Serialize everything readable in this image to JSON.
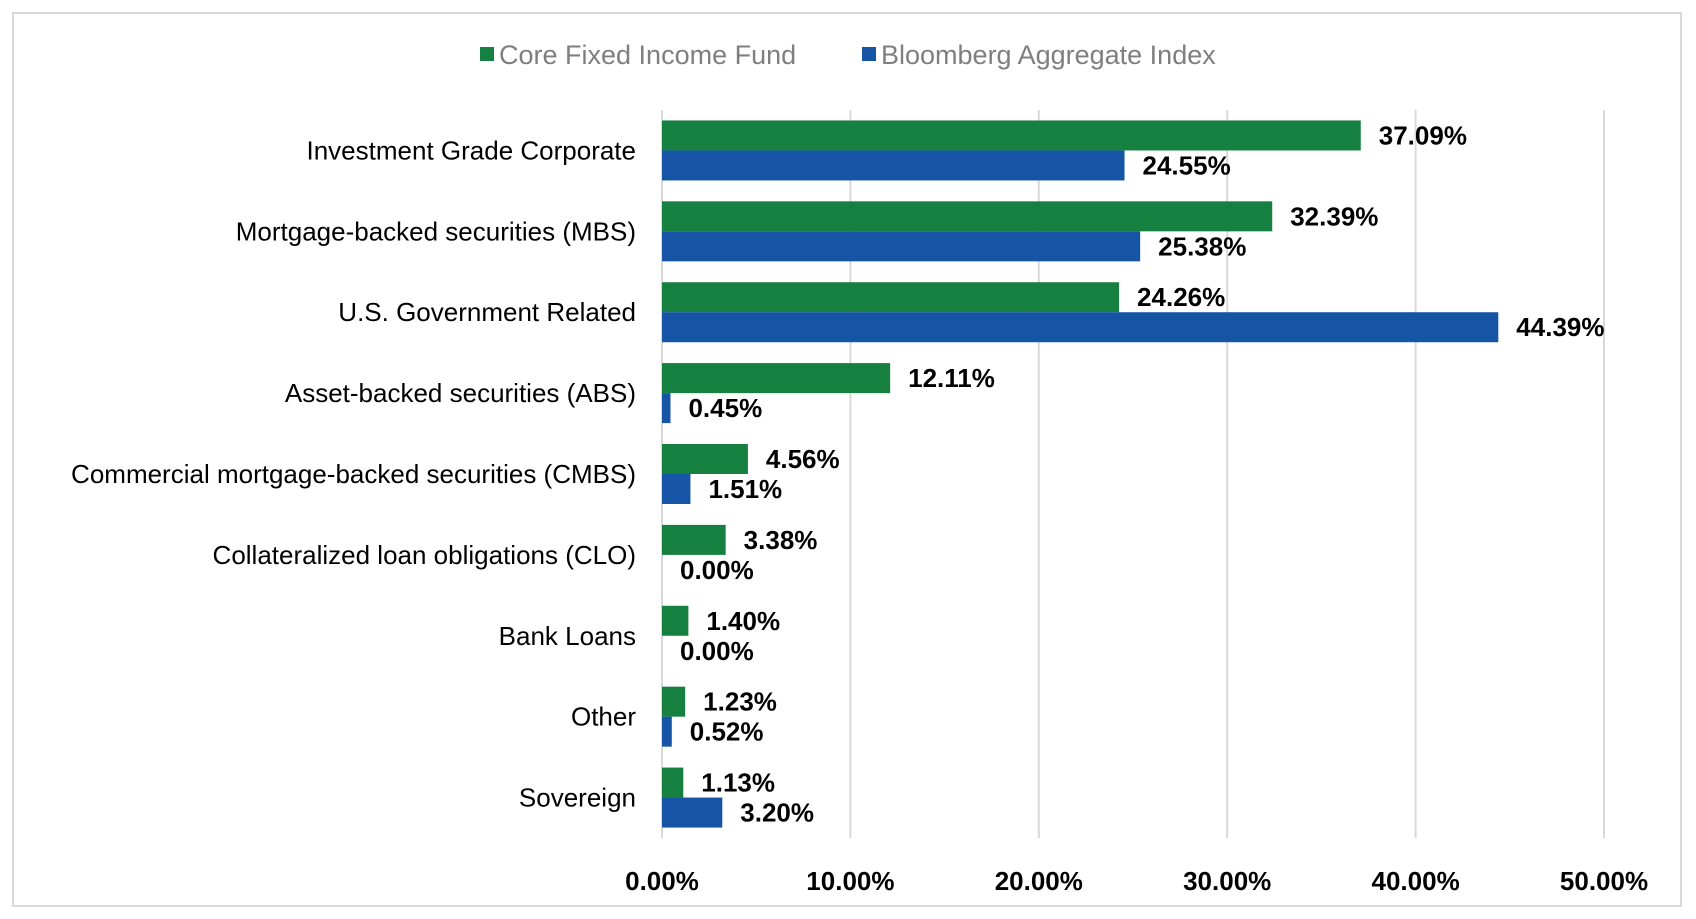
{
  "chart_data": {
    "type": "bar",
    "orientation": "horizontal",
    "categories": [
      "Investment Grade Corporate",
      "Mortgage-backed securities (MBS)",
      "U.S. Government Related",
      "Asset-backed securities (ABS)",
      "Commercial mortgage-backed securities (CMBS)",
      "Collateralized loan obligations (CLO)",
      "Bank Loans",
      "Other",
      "Sovereign"
    ],
    "series": [
      {
        "name": "Core Fixed Income Fund",
        "color": "#168041",
        "values": [
          37.09,
          32.39,
          24.26,
          12.11,
          4.56,
          3.38,
          1.4,
          1.23,
          1.13
        ],
        "labels": [
          "37.09%",
          "32.39%",
          "24.26%",
          "12.11%",
          "4.56%",
          "3.38%",
          "1.40%",
          "1.23%",
          "1.13%"
        ]
      },
      {
        "name": "Bloomberg Aggregate Index",
        "color": "#1655a5",
        "values": [
          24.55,
          25.38,
          44.39,
          0.45,
          1.51,
          0.0,
          0.0,
          0.52,
          3.2
        ],
        "labels": [
          "24.55%",
          "25.38%",
          "44.39%",
          "0.45%",
          "1.51%",
          "0.00%",
          "0.00%",
          "0.52%",
          "3.20%"
        ]
      }
    ],
    "xlim": [
      0,
      50
    ],
    "xticks": [
      0,
      10,
      20,
      30,
      40,
      50
    ],
    "xtick_labels": [
      "0.00%",
      "10.00%",
      "20.00%",
      "30.00%",
      "40.00%",
      "50.00%"
    ],
    "title": "",
    "xlabel": "",
    "ylabel": "",
    "grid": "vertical",
    "legend_position": "top-center"
  }
}
